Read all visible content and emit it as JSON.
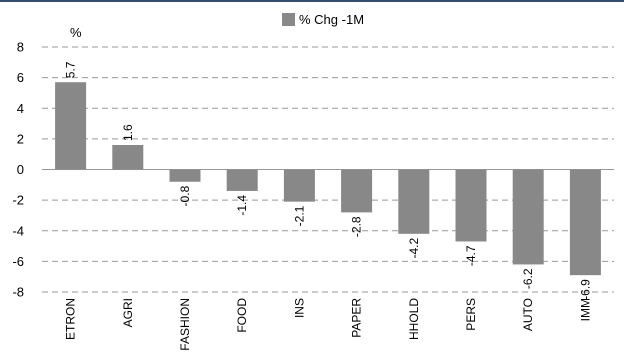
{
  "chart_data": {
    "type": "bar",
    "title": "",
    "unit_label": "%",
    "xlabel": "",
    "ylabel": "",
    "categories": [
      "ETRON",
      "AGRI",
      "FASHION",
      "FOOD",
      "INS",
      "PAPER",
      "HHOLD",
      "PERS",
      "AUTO",
      "IMM"
    ],
    "series": [
      {
        "name": "% Chg -1M",
        "values": [
          5.7,
          1.6,
          -0.8,
          -1.4,
          -2.1,
          -2.8,
          -4.2,
          -4.7,
          -6.2,
          -6.9
        ],
        "value_labels": [
          "5.7",
          "1.6",
          "-0.8",
          "-1.4",
          "-2.1",
          "-2.8",
          "-4.2",
          "-4.7",
          "-6.2",
          "-6.9"
        ]
      }
    ],
    "yticks": [
      8,
      6,
      4,
      2,
      0,
      -2,
      -4,
      -6,
      -8
    ],
    "ylim": [
      -8,
      8
    ],
    "grid": true,
    "gridline_style": "dashed",
    "legend_position": "top-center",
    "colors": {
      "bar": "#888888",
      "grid": "#999999",
      "text": "#000000",
      "top_rule": "#2f4f74"
    }
  }
}
